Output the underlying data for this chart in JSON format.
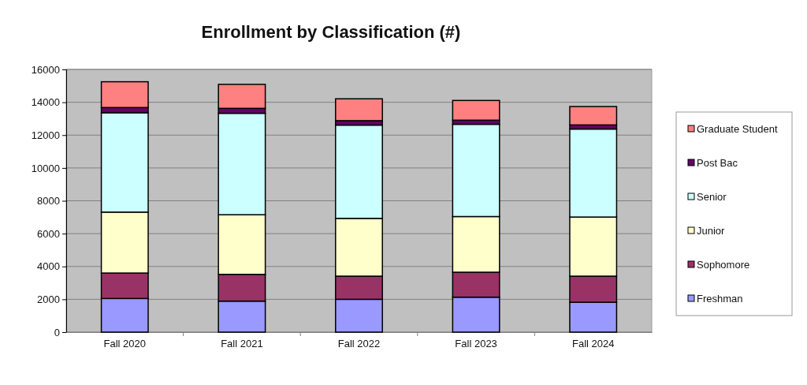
{
  "chart_data": {
    "type": "bar",
    "title": "Enrollment by Classification (#)",
    "categories": [
      "Fall 2020",
      "Fall 2021",
      "Fall 2022",
      "Fall 2023",
      "Fall 2024"
    ],
    "stacked": true,
    "series": [
      {
        "name": "Freshman",
        "color": "#9999ff",
        "values": [
          2050,
          1890,
          2000,
          2130,
          1820
        ]
      },
      {
        "name": "Sophomore",
        "color": "#993366",
        "values": [
          1550,
          1630,
          1410,
          1520,
          1590
        ]
      },
      {
        "name": "Junior",
        "color": "#ffffcc",
        "values": [
          3710,
          3630,
          3520,
          3390,
          3600
        ]
      },
      {
        "name": "Senior",
        "color": "#ccffff",
        "values": [
          6050,
          6180,
          5680,
          5620,
          5360
        ]
      },
      {
        "name": "Post Bac",
        "color": "#660066",
        "values": [
          320,
          300,
          270,
          250,
          250
        ]
      },
      {
        "name": "Graduate Student",
        "color": "#ff8080",
        "values": [
          1570,
          1460,
          1330,
          1200,
          1120
        ]
      }
    ],
    "ylim": [
      0,
      16000
    ],
    "yticks": [
      0,
      2000,
      4000,
      6000,
      8000,
      10000,
      12000,
      14000,
      16000
    ],
    "grid": "y",
    "legend": "right"
  }
}
